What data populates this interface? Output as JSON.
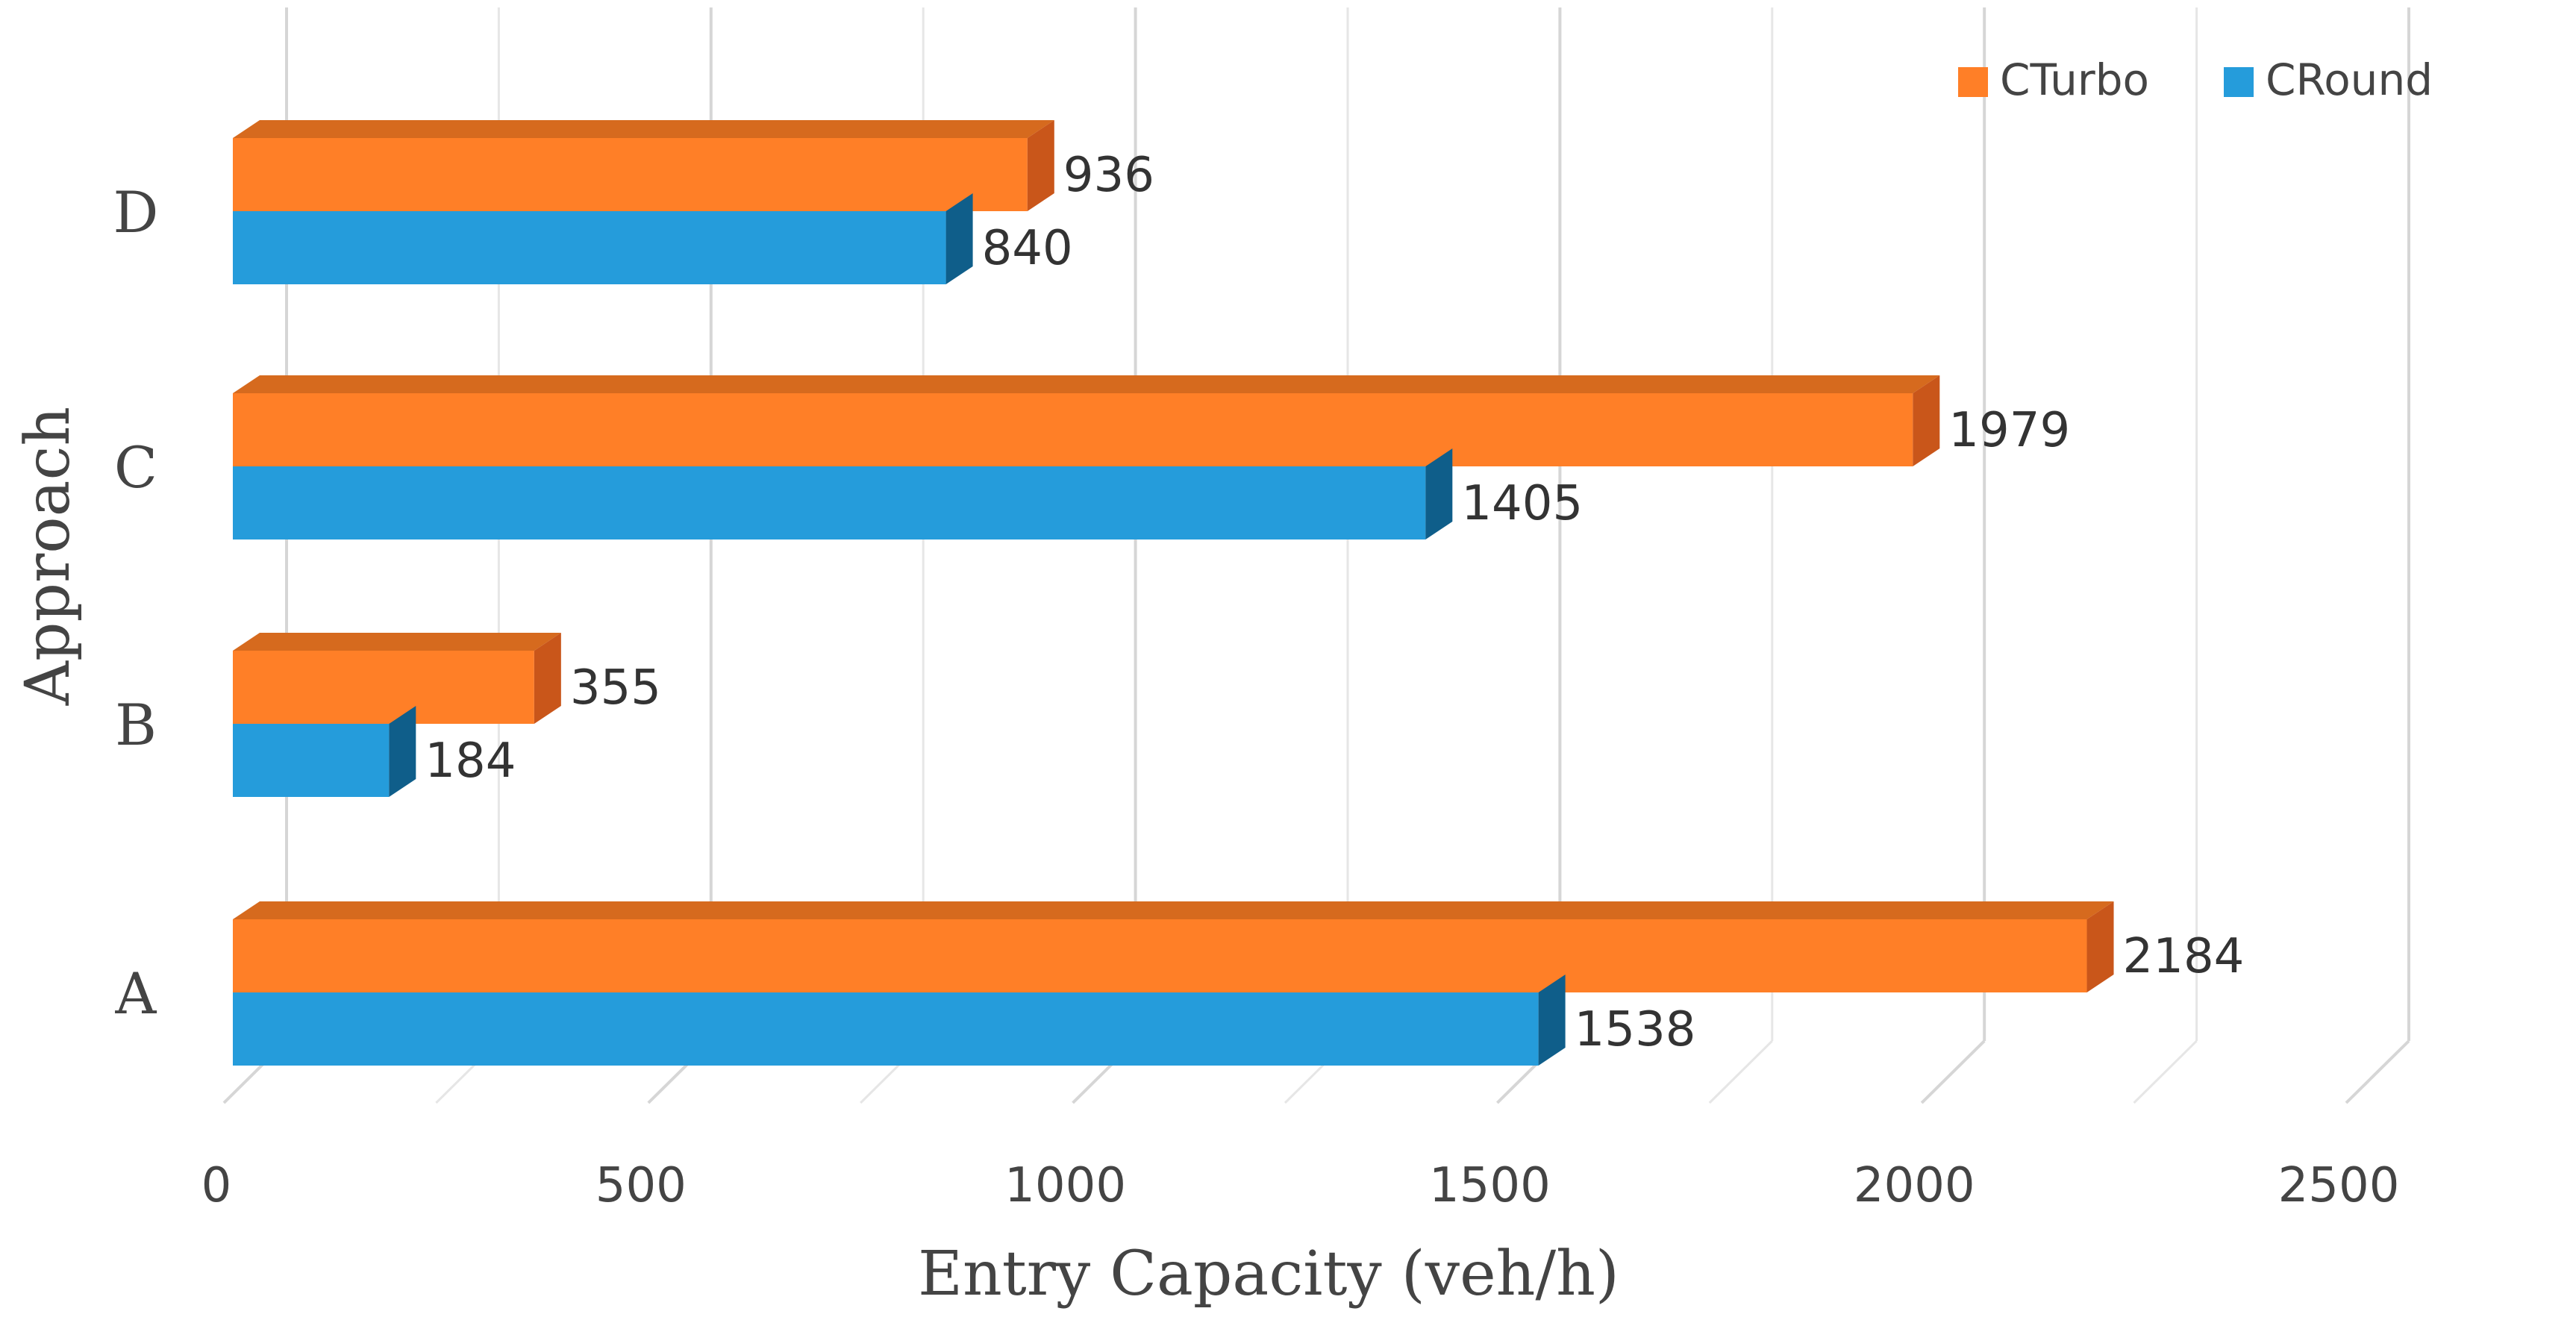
{
  "chart_data": {
    "type": "bar",
    "orientation": "horizontal",
    "style": "3d-clustered",
    "categories": [
      "A",
      "B",
      "C",
      "D"
    ],
    "series": [
      {
        "name": "CTurbo",
        "values": [
          2184,
          355,
          1979,
          936
        ],
        "color": "#FF7F27",
        "side_color": "#C9561A",
        "top_color": "#D66A1E"
      },
      {
        "name": "CRound",
        "values": [
          1538,
          184,
          1405,
          840
        ],
        "color": "#259CDB",
        "side_color": "#0F5E8A",
        "top_color": "#1B7DB4"
      }
    ],
    "xlabel": "Entry Capacity (veh/h)",
    "ylabel": "Approach",
    "xlim": [
      0,
      2500
    ],
    "xticks": [
      "0",
      "500",
      "1000",
      "1500",
      "2000",
      "2500"
    ],
    "grid": true,
    "legend_position": "top-right"
  }
}
